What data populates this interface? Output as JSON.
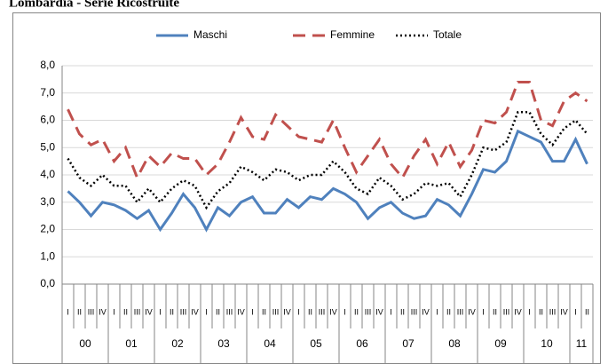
{
  "chart_data": {
    "type": "line",
    "title": "Lombardia - Serie Ricostruite",
    "categories": [
      "I",
      "II",
      "III",
      "IV",
      "I",
      "II",
      "III",
      "IV",
      "I",
      "II",
      "III",
      "IV",
      "I",
      "II",
      "III",
      "IV",
      "I",
      "II",
      "III",
      "IV",
      "I",
      "II",
      "III",
      "IV",
      "I",
      "II",
      "III",
      "IV",
      "I",
      "II",
      "III",
      "IV",
      "I",
      "II",
      "III",
      "IV",
      "I",
      "II",
      "III",
      "IV",
      "I",
      "II",
      "III",
      "IV",
      "I",
      "II"
    ],
    "groups": [
      {
        "label": "00",
        "count": 4
      },
      {
        "label": "01",
        "count": 4
      },
      {
        "label": "02",
        "count": 4
      },
      {
        "label": "03",
        "count": 4
      },
      {
        "label": "04",
        "count": 4
      },
      {
        "label": "05",
        "count": 4
      },
      {
        "label": "06",
        "count": 4
      },
      {
        "label": "07",
        "count": 4
      },
      {
        "label": "08",
        "count": 4
      },
      {
        "label": "09",
        "count": 4
      },
      {
        "label": "10",
        "count": 4
      },
      {
        "label": "11",
        "count": 2
      }
    ],
    "series": [
      {
        "name": "Maschi",
        "color": "#4f81bd",
        "style": "solid",
        "values": [
          3.4,
          3.0,
          2.5,
          3.0,
          2.9,
          2.7,
          2.4,
          2.7,
          2.0,
          2.6,
          3.3,
          2.8,
          2.0,
          2.8,
          2.5,
          3.0,
          3.2,
          2.6,
          2.6,
          3.1,
          2.8,
          3.2,
          3.1,
          3.5,
          3.3,
          3.0,
          2.4,
          2.8,
          3.0,
          2.6,
          2.4,
          2.5,
          3.1,
          2.9,
          2.5,
          3.3,
          4.2,
          4.1,
          4.5,
          5.6,
          5.4,
          5.2,
          4.5,
          4.5,
          5.3,
          4.4
        ]
      },
      {
        "name": "Femmine",
        "color": "#c0504d",
        "style": "dashed",
        "values": [
          6.4,
          5.5,
          5.1,
          5.3,
          4.5,
          5.0,
          3.9,
          4.7,
          4.3,
          4.8,
          4.6,
          4.6,
          4.0,
          4.4,
          5.2,
          6.1,
          5.4,
          5.3,
          6.2,
          5.8,
          5.4,
          5.3,
          5.2,
          6.0,
          5.0,
          4.1,
          4.7,
          5.3,
          4.4,
          3.9,
          4.7,
          5.3,
          4.4,
          5.2,
          4.3,
          4.9,
          6.0,
          5.9,
          6.3,
          7.4,
          7.4,
          6.0,
          5.8,
          6.7,
          7.0,
          6.7
        ]
      },
      {
        "name": "Totale",
        "color": "#000000",
        "style": "dotted",
        "values": [
          4.6,
          3.9,
          3.6,
          4.0,
          3.6,
          3.6,
          3.0,
          3.5,
          3.0,
          3.5,
          3.8,
          3.6,
          2.8,
          3.4,
          3.7,
          4.3,
          4.1,
          3.8,
          4.2,
          4.1,
          3.8,
          4.0,
          4.0,
          4.5,
          4.1,
          3.5,
          3.3,
          3.9,
          3.6,
          3.1,
          3.3,
          3.7,
          3.6,
          3.7,
          3.2,
          4.0,
          5.0,
          4.9,
          5.2,
          6.3,
          6.3,
          5.5,
          5.1,
          5.7,
          6.0,
          5.5
        ]
      }
    ],
    "ylim": [
      0,
      8
    ],
    "yticks": [
      {
        "value": 0,
        "label": "0,0"
      },
      {
        "value": 1,
        "label": "1,0"
      },
      {
        "value": 2,
        "label": "2,0"
      },
      {
        "value": 3,
        "label": "3,0"
      },
      {
        "value": 4,
        "label": "4,0"
      },
      {
        "value": 5,
        "label": "5,0"
      },
      {
        "value": 6,
        "label": "6,0"
      },
      {
        "value": 7,
        "label": "7,0"
      },
      {
        "value": 8,
        "label": "8,0"
      }
    ],
    "grid": true,
    "legend": "top"
  }
}
